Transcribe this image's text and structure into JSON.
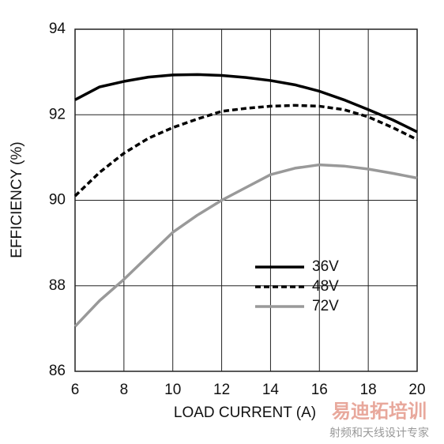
{
  "chart_data": {
    "type": "line",
    "x_label": "LOAD CURRENT (A)",
    "y_label": "EFFICIENCY (%)",
    "x": [
      6,
      7,
      8,
      9,
      10,
      11,
      12,
      13,
      14,
      15,
      16,
      17,
      18,
      19,
      20
    ],
    "series": [
      {
        "name": "36V",
        "color": "#000000",
        "dash": "solid",
        "values": [
          92.35,
          92.65,
          92.78,
          92.88,
          92.93,
          92.94,
          92.92,
          92.87,
          92.8,
          92.7,
          92.55,
          92.35,
          92.12,
          91.88,
          91.6
        ]
      },
      {
        "name": "48V",
        "color": "#000000",
        "dash": "dashed",
        "values": [
          90.1,
          90.65,
          91.1,
          91.45,
          91.7,
          91.9,
          92.08,
          92.15,
          92.2,
          92.22,
          92.2,
          92.12,
          91.95,
          91.7,
          91.42
        ]
      },
      {
        "name": "72V",
        "color": "#999999",
        "dash": "solid",
        "values": [
          87.05,
          87.65,
          88.15,
          88.7,
          89.25,
          89.65,
          90.0,
          90.3,
          90.6,
          90.75,
          90.83,
          90.8,
          90.73,
          90.63,
          90.52
        ]
      }
    ],
    "xlim": [
      6,
      20
    ],
    "xticks": [
      6,
      8,
      10,
      12,
      14,
      16,
      18,
      20
    ],
    "ylim": [
      86,
      94
    ],
    "yticks": [
      86,
      88,
      90,
      92,
      94
    ],
    "grid": true,
    "legend": "lower right"
  },
  "watermark": {
    "title": "易迪拓培训",
    "subtitle": "射频和天线设计专家"
  }
}
